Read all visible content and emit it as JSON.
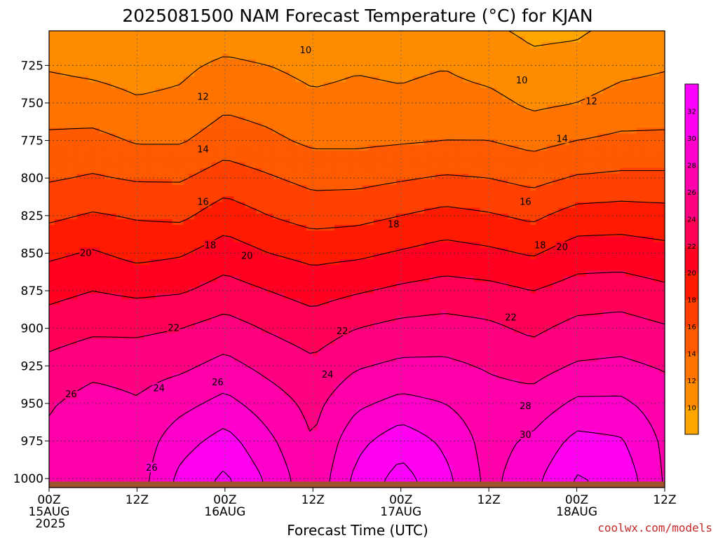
{
  "title": "2025081500 NAM Forecast Temperature (°C) for KJAN",
  "credit": "coolwx.com/models",
  "chart_data": {
    "type": "heatmap",
    "title": "2025081500 NAM Forecast Temperature (°C) for KJAN",
    "xlabel": "Forecast Time (UTC)",
    "ylabel": "",
    "x_ticks": [
      {
        "hour": 0,
        "line1": "00Z",
        "line2": "15AUG",
        "line3": "2025"
      },
      {
        "hour": 12,
        "line1": "12Z",
        "line2": "",
        "line3": ""
      },
      {
        "hour": 24,
        "line1": "00Z",
        "line2": "16AUG",
        "line3": ""
      },
      {
        "hour": 36,
        "line1": "12Z",
        "line2": "",
        "line3": ""
      },
      {
        "hour": 48,
        "line1": "00Z",
        "line2": "17AUG",
        "line3": ""
      },
      {
        "hour": 60,
        "line1": "12Z",
        "line2": "",
        "line3": ""
      },
      {
        "hour": 72,
        "line1": "00Z",
        "line2": "18AUG",
        "line3": ""
      },
      {
        "hour": 84,
        "line1": "12Z",
        "line2": "",
        "line3": ""
      }
    ],
    "xlim": [
      0,
      84
    ],
    "y_ticks": [
      725,
      750,
      775,
      800,
      825,
      850,
      875,
      900,
      925,
      950,
      975,
      1000
    ],
    "ylim": [
      1006,
      702
    ],
    "y_units": "hPa",
    "ground_pressure": 1002,
    "grid": true,
    "colorbar": {
      "levels": [
        8,
        10,
        12,
        14,
        16,
        18,
        20,
        22,
        24,
        26,
        28,
        30,
        32,
        34
      ],
      "labels": [
        10,
        12,
        14,
        16,
        18,
        20,
        22,
        24,
        26,
        28,
        30,
        32
      ],
      "colors": [
        "#ffa500",
        "#ff8c00",
        "#ff7300",
        "#ff5a00",
        "#ff4000",
        "#ff1a00",
        "#ff0020",
        "#ff0055",
        "#ff0080",
        "#ff00aa",
        "#ff00cc",
        "#ff00f0",
        "#ff00ff"
      ]
    },
    "times": [
      0,
      6,
      12,
      18,
      24,
      30,
      36,
      42,
      48,
      54,
      60,
      66,
      72,
      78,
      84
    ],
    "levels_hpa": [
      700,
      725,
      750,
      775,
      800,
      825,
      850,
      875,
      900,
      925,
      950,
      975,
      1000
    ],
    "temperature": [
      [
        10.6,
        10.4,
        10.2,
        10.4,
        10.8,
        10.5,
        10.2,
        10.3,
        10.4,
        10.6,
        10.2,
        9.6,
        9.7,
        10.4,
        10.6
      ],
      [
        11.8,
        11.5,
        11.2,
        11.6,
        12.4,
        12.0,
        11.4,
        11.8,
        11.6,
        11.9,
        11.2,
        10.4,
        10.6,
        11.4,
        11.8
      ],
      [
        13.0,
        12.8,
        12.2,
        12.4,
        13.6,
        13.2,
        12.4,
        12.6,
        12.4,
        12.8,
        12.6,
        11.6,
        12.0,
        12.8,
        13.0
      ],
      [
        14.4,
        14.6,
        13.8,
        13.8,
        15.0,
        14.4,
        13.6,
        13.6,
        13.8,
        14.0,
        14.0,
        13.4,
        14.0,
        14.4,
        14.4
      ],
      [
        15.8,
        16.2,
        15.8,
        15.8,
        17.0,
        16.2,
        15.4,
        15.4,
        15.8,
        16.2,
        16.0,
        15.4,
        16.2,
        16.4,
        16.4
      ],
      [
        17.6,
        18.2,
        17.8,
        17.6,
        19.0,
        18.0,
        17.2,
        17.4,
        18.0,
        18.6,
        18.2,
        17.6,
        18.8,
        19.0,
        18.8
      ],
      [
        19.6,
        20.2,
        19.4,
        19.8,
        21.0,
        20.0,
        19.4,
        19.6,
        20.2,
        20.8,
        20.4,
        19.8,
        21.0,
        21.0,
        20.6
      ],
      [
        21.4,
        22.0,
        21.6,
        21.8,
        22.8,
        22.0,
        21.2,
        21.8,
        22.4,
        22.8,
        22.6,
        22.0,
        22.8,
        23.0,
        22.4
      ],
      [
        23.0,
        23.6,
        23.6,
        24.0,
        24.8,
        23.8,
        23.0,
        24.0,
        24.6,
        24.8,
        24.4,
        23.6,
        24.6,
        24.8,
        24.2
      ],
      [
        24.6,
        25.4,
        25.2,
        25.6,
        26.6,
        25.4,
        24.4,
        25.8,
        26.4,
        26.4,
        25.8,
        25.2,
        26.2,
        26.4,
        25.8
      ],
      [
        25.8,
        26.8,
        26.2,
        27.4,
        28.6,
        27.0,
        25.4,
        27.6,
        28.6,
        28.0,
        26.8,
        26.8,
        28.4,
        28.4,
        27.0
      ],
      [
        26.4,
        27.4,
        26.8,
        29.2,
        30.8,
        28.4,
        26.0,
        29.4,
        31.2,
        29.6,
        27.2,
        28.4,
        30.6,
        30.2,
        27.6
      ],
      [
        26.8,
        27.6,
        27.0,
        30.6,
        32.4,
        29.6,
        26.4,
        30.6,
        32.8,
        30.6,
        27.4,
        29.4,
        32.2,
        31.4,
        27.8
      ]
    ],
    "contour_labels": [
      {
        "value": "10",
        "hour": 35,
        "p": 715
      },
      {
        "value": "10",
        "hour": 64.5,
        "p": 735
      },
      {
        "value": "12",
        "hour": 21,
        "p": 746
      },
      {
        "value": "12",
        "hour": 74,
        "p": 749
      },
      {
        "value": "14",
        "hour": 21,
        "p": 781
      },
      {
        "value": "14",
        "hour": 70,
        "p": 774
      },
      {
        "value": "16",
        "hour": 21,
        "p": 816
      },
      {
        "value": "16",
        "hour": 65,
        "p": 816
      },
      {
        "value": "18",
        "hour": 47,
        "p": 831
      },
      {
        "value": "18",
        "hour": 22,
        "p": 845
      },
      {
        "value": "18",
        "hour": 67,
        "p": 845
      },
      {
        "value": "20",
        "hour": 5,
        "p": 850
      },
      {
        "value": "20",
        "hour": 27,
        "p": 852
      },
      {
        "value": "20",
        "hour": 70,
        "p": 846
      },
      {
        "value": "22",
        "hour": 17,
        "p": 900
      },
      {
        "value": "22",
        "hour": 40,
        "p": 902
      },
      {
        "value": "22",
        "hour": 63,
        "p": 893
      },
      {
        "value": "24",
        "hour": 15,
        "p": 940
      },
      {
        "value": "24",
        "hour": 38,
        "p": 931
      },
      {
        "value": "26",
        "hour": 3,
        "p": 944
      },
      {
        "value": "26",
        "hour": 23,
        "p": 936
      },
      {
        "value": "26",
        "hour": 14,
        "p": 993
      },
      {
        "value": "28",
        "hour": 65,
        "p": 952
      },
      {
        "value": "30",
        "hour": 65,
        "p": 971
      }
    ]
  }
}
